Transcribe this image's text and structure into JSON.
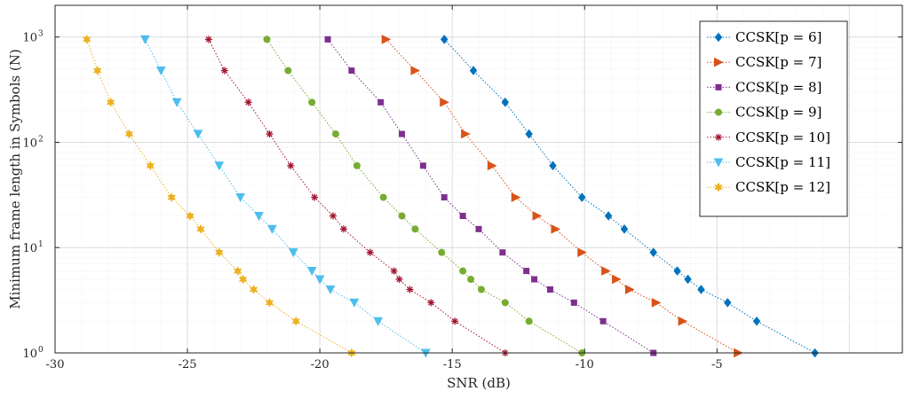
{
  "chart_data": {
    "type": "scatter",
    "xlabel": "SNR (dB)",
    "ylabel": "Minimum frame length in Symbols (N)",
    "xlim": [
      -30,
      2
    ],
    "ylim": [
      1,
      2000
    ],
    "y_scale": "log",
    "grid": true,
    "legend_position": "top-right",
    "x_ticks": [
      "-30",
      "-25",
      "-20",
      "-15",
      "-10",
      "-5"
    ],
    "y_ticks": [
      {
        "base": "10",
        "exp": "0"
      },
      {
        "base": "10",
        "exp": "1"
      },
      {
        "base": "10",
        "exp": "2"
      },
      {
        "base": "10",
        "exp": "3"
      }
    ],
    "series": [
      {
        "name": "CCSK[p = 6]",
        "color": "#0072BD",
        "marker": "diamond",
        "x": [
          -15.3,
          -14.2,
          -13.0,
          -12.1,
          -11.2,
          -10.1,
          -9.1,
          -8.5,
          -7.4,
          -6.5,
          -6.1,
          -5.6,
          -4.6,
          -3.5,
          -1.3
        ],
        "y": [
          950,
          480,
          240,
          120,
          60,
          30,
          20,
          15,
          9,
          6,
          5,
          4,
          3,
          2,
          1
        ]
      },
      {
        "name": "CCSK[p = 7]",
        "color": "#D95319",
        "marker": "triangle-right",
        "x": [
          -17.5,
          -16.4,
          -15.3,
          -14.5,
          -13.5,
          -12.6,
          -11.8,
          -11.1,
          -10.1,
          -9.2,
          -8.8,
          -8.3,
          -7.3,
          -6.3,
          -4.2
        ],
        "y": [
          950,
          480,
          240,
          120,
          60,
          30,
          20,
          15,
          9,
          6,
          5,
          4,
          3,
          2,
          1
        ]
      },
      {
        "name": "CCSK[p = 8]",
        "color": "#7E2F8E",
        "marker": "square",
        "x": [
          -19.7,
          -18.8,
          -17.7,
          -16.9,
          -16.1,
          -15.3,
          -14.6,
          -14.0,
          -13.1,
          -12.2,
          -11.9,
          -11.3,
          -10.4,
          -9.3,
          -7.4
        ],
        "y": [
          950,
          480,
          240,
          120,
          60,
          30,
          20,
          15,
          9,
          6,
          5,
          4,
          3,
          2,
          1
        ]
      },
      {
        "name": "CCSK[p = 9]",
        "color": "#77AC30",
        "marker": "circle",
        "x": [
          -22.0,
          -21.2,
          -20.3,
          -19.4,
          -18.6,
          -17.6,
          -16.9,
          -16.4,
          -15.4,
          -14.6,
          -14.3,
          -13.9,
          -13.0,
          -12.1,
          -10.1
        ],
        "y": [
          950,
          480,
          240,
          120,
          60,
          30,
          20,
          15,
          9,
          6,
          5,
          4,
          3,
          2,
          1
        ]
      },
      {
        "name": "CCSK[p = 10]",
        "color": "#A2142F",
        "marker": "asterisk",
        "x": [
          -24.2,
          -23.6,
          -22.7,
          -21.9,
          -21.1,
          -20.2,
          -19.5,
          -19.1,
          -18.1,
          -17.2,
          -17.0,
          -16.6,
          -15.8,
          -14.9,
          -13.0
        ],
        "y": [
          950,
          480,
          240,
          120,
          60,
          30,
          20,
          15,
          9,
          6,
          5,
          4,
          3,
          2,
          1
        ]
      },
      {
        "name": "CCSK[p = 11]",
        "color": "#4DBEEE",
        "marker": "triangle-down",
        "x": [
          -26.6,
          -26.0,
          -25.4,
          -24.6,
          -23.8,
          -23.0,
          -22.3,
          -21.8,
          -21.0,
          -20.3,
          -20.0,
          -19.6,
          -18.7,
          -17.8,
          -16.0
        ],
        "y": [
          950,
          480,
          240,
          120,
          60,
          30,
          20,
          15,
          9,
          6,
          5,
          4,
          3,
          2,
          1
        ]
      },
      {
        "name": "CCSK[p = 12]",
        "color": "#EDB120",
        "marker": "hexagram",
        "x": [
          -28.8,
          -28.4,
          -27.9,
          -27.2,
          -26.4,
          -25.6,
          -24.9,
          -24.5,
          -23.8,
          -23.1,
          -22.9,
          -22.5,
          -21.9,
          -20.9,
          -18.8
        ],
        "y": [
          950,
          480,
          240,
          120,
          60,
          30,
          20,
          15,
          9,
          6,
          5,
          4,
          3,
          2,
          1
        ]
      }
    ]
  }
}
